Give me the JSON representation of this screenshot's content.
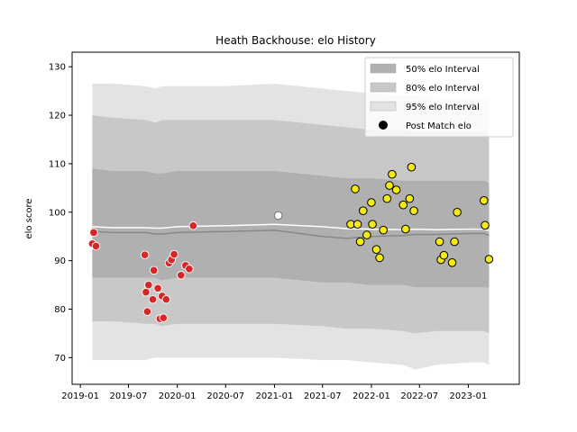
{
  "chart_data": {
    "type": "scatter",
    "title": "Heath Backhouse: elo History",
    "xlabel": "",
    "ylabel": "elo score",
    "xlim": [
      "2018-12-01",
      "2023-07-12"
    ],
    "ylim": [
      64.5,
      133
    ],
    "x_ticks": [
      "2019-01",
      "2019-07",
      "2020-01",
      "2020-07",
      "2021-01",
      "2021-07",
      "2022-01",
      "2022-07",
      "2023-01"
    ],
    "y_ticks": [
      70,
      80,
      90,
      100,
      110,
      120,
      130
    ],
    "grid": false,
    "legend_position": "top-right",
    "legend": [
      {
        "label": "50% elo Interval",
        "type": "band",
        "color": "#b0b0b0"
      },
      {
        "label": "80% elo Interval",
        "type": "band",
        "color": "#c8c8c8"
      },
      {
        "label": "95% elo Interval",
        "type": "band",
        "color": "#e3e3e3"
      },
      {
        "label": "Post Match elo",
        "type": "marker",
        "color": "#000000"
      }
    ],
    "colors": {
      "loss": "#d62728",
      "win": "#f5ea14",
      "neutral": "#ffffff",
      "mean_line": "#ffffff",
      "median_line": "#888888"
    },
    "bands": {
      "x": [
        "2019-02-15",
        "2019-05-01",
        "2019-09-01",
        "2019-10-10",
        "2019-11-05",
        "2020-01-01",
        "2020-07-01",
        "2021-01-01",
        "2021-07-01",
        "2021-10-01",
        "2022-01-01",
        "2022-05-01",
        "2022-06-15",
        "2022-09-01",
        "2023-01-01",
        "2023-03-01",
        "2023-03-20"
      ],
      "b95_hi": [
        126.5,
        126.5,
        126,
        125.5,
        126,
        126,
        126,
        126.5,
        125.5,
        125,
        124.5,
        124,
        124,
        123.5,
        123.5,
        123.5,
        123
      ],
      "b95_lo": [
        69.5,
        69.5,
        69.5,
        70,
        70,
        70,
        70,
        70,
        69.5,
        69.5,
        69,
        68.5,
        67.5,
        68.5,
        69,
        69,
        68.5
      ],
      "b80_hi": [
        120,
        119.5,
        119,
        118.5,
        119,
        119,
        119,
        119,
        118,
        117.5,
        117,
        117,
        116.5,
        116.5,
        116.5,
        116.5,
        116
      ],
      "b80_lo": [
        77.5,
        77.5,
        77,
        77,
        76.5,
        77,
        77,
        77,
        76.5,
        76,
        76,
        75.5,
        75,
        75.5,
        75.5,
        75.5,
        75
      ],
      "b50_hi": [
        109,
        108.5,
        108.5,
        108,
        108,
        108.5,
        108.5,
        108.5,
        107.5,
        107,
        107,
        106.5,
        106.5,
        106.5,
        106.5,
        106.5,
        106
      ],
      "b50_lo": [
        86.5,
        86.5,
        86.5,
        86.5,
        86,
        86.5,
        86.5,
        86.5,
        85.5,
        85.5,
        85,
        85,
        84.5,
        84.5,
        84.5,
        84.5,
        84.5
      ],
      "mean": [
        97,
        96.8,
        96.8,
        96.7,
        96.7,
        97,
        97.2,
        97.5,
        97,
        96.6,
        96.5,
        96.4,
        96.5,
        96.4,
        96.5,
        96.5,
        96.2
      ],
      "median": [
        96,
        95.8,
        95.8,
        95.5,
        95.5,
        95.8,
        96,
        96.3,
        95,
        94.6,
        95,
        95.2,
        95.4,
        95.4,
        95.6,
        95.6,
        95.2
      ]
    },
    "series": [
      {
        "name": "losses",
        "color": "#d62728",
        "points": [
          {
            "x": "2019-02-15",
            "y": 93.5
          },
          {
            "x": "2019-02-20",
            "y": 95.8
          },
          {
            "x": "2019-03-01",
            "y": 93
          },
          {
            "x": "2019-09-01",
            "y": 91.2
          },
          {
            "x": "2019-09-05",
            "y": 83.5
          },
          {
            "x": "2019-09-10",
            "y": 79.5
          },
          {
            "x": "2019-09-15",
            "y": 85
          },
          {
            "x": "2019-10-01",
            "y": 82
          },
          {
            "x": "2019-10-05",
            "y": 88
          },
          {
            "x": "2019-10-20",
            "y": 84.3
          },
          {
            "x": "2019-10-28",
            "y": 78
          },
          {
            "x": "2019-11-05",
            "y": 82.7
          },
          {
            "x": "2019-11-10",
            "y": 78.2
          },
          {
            "x": "2019-11-20",
            "y": 82
          },
          {
            "x": "2019-12-01",
            "y": 89.5
          },
          {
            "x": "2019-12-10",
            "y": 90.2
          },
          {
            "x": "2019-12-20",
            "y": 91.3
          },
          {
            "x": "2020-01-15",
            "y": 87
          },
          {
            "x": "2020-02-01",
            "y": 89
          },
          {
            "x": "2020-02-15",
            "y": 88.3
          },
          {
            "x": "2020-03-01",
            "y": 97.2
          }
        ]
      },
      {
        "name": "neutral",
        "color": "#ffffff",
        "points": [
          {
            "x": "2021-01-15",
            "y": 99.3
          }
        ]
      },
      {
        "name": "wins",
        "color": "#f5ea14",
        "points": [
          {
            "x": "2021-10-15",
            "y": 97.5
          },
          {
            "x": "2021-11-01",
            "y": 104.8
          },
          {
            "x": "2021-11-10",
            "y": 97.5
          },
          {
            "x": "2021-11-20",
            "y": 93.9
          },
          {
            "x": "2021-12-01",
            "y": 100.3
          },
          {
            "x": "2021-12-15",
            "y": 95.3
          },
          {
            "x": "2022-01-01",
            "y": 102
          },
          {
            "x": "2022-01-05",
            "y": 97.5
          },
          {
            "x": "2022-01-20",
            "y": 92.3
          },
          {
            "x": "2022-02-01",
            "y": 90.6
          },
          {
            "x": "2022-02-15",
            "y": 96.3
          },
          {
            "x": "2022-03-01",
            "y": 102.8
          },
          {
            "x": "2022-03-10",
            "y": 105.5
          },
          {
            "x": "2022-03-20",
            "y": 107.8
          },
          {
            "x": "2022-04-05",
            "y": 104.6
          },
          {
            "x": "2022-05-01",
            "y": 101.5
          },
          {
            "x": "2022-05-10",
            "y": 96.5
          },
          {
            "x": "2022-05-25",
            "y": 102.8
          },
          {
            "x": "2022-06-01",
            "y": 109.3
          },
          {
            "x": "2022-06-10",
            "y": 100.3
          },
          {
            "x": "2022-09-15",
            "y": 93.9
          },
          {
            "x": "2022-09-20",
            "y": 90.2
          },
          {
            "x": "2022-10-01",
            "y": 91.1
          },
          {
            "x": "2022-11-01",
            "y": 89.6
          },
          {
            "x": "2022-11-10",
            "y": 93.9
          },
          {
            "x": "2022-11-20",
            "y": 100
          },
          {
            "x": "2023-03-01",
            "y": 102.4
          },
          {
            "x": "2023-03-05",
            "y": 97.3
          },
          {
            "x": "2023-03-20",
            "y": 90.3
          }
        ]
      }
    ]
  }
}
